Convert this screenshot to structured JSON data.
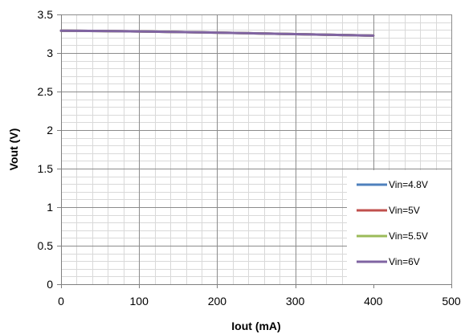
{
  "chart_data": {
    "type": "line",
    "title": "",
    "xlabel": "Iout (mA)",
    "ylabel": "Vout (V)",
    "xlim": [
      0,
      500
    ],
    "ylim": [
      0,
      3.5
    ],
    "x_ticks": [
      0,
      100,
      200,
      300,
      400,
      500
    ],
    "x_tick_labels": [
      "0",
      "100",
      "200",
      "300",
      "400",
      "500"
    ],
    "y_ticks": [
      0,
      0.5,
      1,
      1.5,
      2,
      2.5,
      3,
      3.5
    ],
    "y_tick_labels": [
      "0",
      "0.5",
      "1",
      "1.5",
      "2",
      "2.5",
      "3",
      "3.5"
    ],
    "x_minor_step": 20,
    "y_minor_step": 0.1,
    "grid": true,
    "legend_position": "bottom-right",
    "series": [
      {
        "name": "Vin=4.8V",
        "color": "#4F81BD",
        "x": [
          0,
          100,
          200,
          300,
          400
        ],
        "y": [
          3.29,
          3.28,
          3.265,
          3.245,
          3.225
        ]
      },
      {
        "name": "Vin=5V",
        "color": "#C0504D",
        "x": [
          0,
          100,
          200,
          300,
          400
        ],
        "y": [
          3.29,
          3.28,
          3.265,
          3.245,
          3.225
        ]
      },
      {
        "name": "Vin=5.5V",
        "color": "#9BBB59",
        "x": [
          0,
          100,
          200,
          300,
          400
        ],
        "y": [
          3.29,
          3.28,
          3.265,
          3.245,
          3.225
        ]
      },
      {
        "name": "Vin=6V",
        "color": "#8064A2",
        "x": [
          0,
          100,
          200,
          300,
          400
        ],
        "y": [
          3.29,
          3.28,
          3.265,
          3.245,
          3.225
        ]
      }
    ]
  }
}
